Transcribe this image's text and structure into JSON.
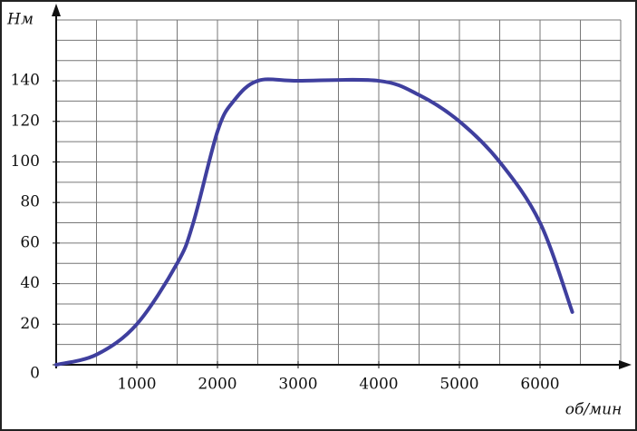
{
  "chart_data": {
    "type": "line",
    "x_label": "об/мин",
    "y_label": "Нм",
    "x": [
      0,
      500,
      1000,
      1500,
      1700,
      2000,
      2200,
      2500,
      3000,
      4000,
      4500,
      5000,
      5500,
      6000,
      6400
    ],
    "series": [
      {
        "color": "#3f3f9e",
        "values": [
          0,
          5,
          20,
          50,
          70,
          115,
          130,
          140,
          140,
          140,
          133,
          120,
          100,
          70,
          26
        ]
      }
    ],
    "xlim": [
      0,
      7000
    ],
    "ylim": [
      0,
      170
    ],
    "xticks": [
      1000,
      2000,
      3000,
      4000,
      5000,
      6000
    ],
    "yticks": [
      0,
      20,
      40,
      60,
      80,
      100,
      120,
      140
    ],
    "xgrid": [
      500,
      1000,
      1500,
      2000,
      2500,
      3000,
      3500,
      4000,
      4500,
      5000,
      5500,
      6000,
      6500,
      7000
    ],
    "ygrid": [
      10,
      20,
      30,
      40,
      50,
      60,
      70,
      80,
      90,
      100,
      110,
      120,
      130,
      140,
      150,
      160,
      170
    ],
    "grid": true
  }
}
